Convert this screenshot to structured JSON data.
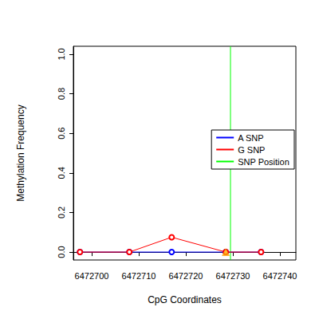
{
  "chart_data": {
    "type": "line",
    "x_label": "CpG Coordinates",
    "y_label": "Methylation Frequency",
    "x": [
      6472697.5,
      6472708,
      6472717,
      6472728.5,
      6472736
    ],
    "series": [
      {
        "name": "A SNP",
        "color": "#0000ff",
        "marker": "open_circle",
        "values": [
          0,
          0,
          0,
          0,
          0
        ]
      },
      {
        "name": "G SNP",
        "color": "#ff0000",
        "marker": "open_circle",
        "values": [
          0,
          0,
          0.075,
          0,
          0
        ]
      },
      {
        "name": "SNP Position",
        "color": "#00ff00",
        "type": "vline",
        "x": [
          6472729.5
        ]
      },
      {
        "color": "#ffa500",
        "type": "scatter",
        "marker": "triangle",
        "x": [
          6472728.5
        ],
        "values": [
          0
        ]
      }
    ],
    "xlim": [
      6472696.1,
      6472743.4
    ],
    "xticks": [
      6472700,
      6472710,
      6472720,
      6472730,
      6472740
    ],
    "ylim": [
      -0.04,
      1.04
    ],
    "yticks": [
      {
        "value": 0,
        "label": "0.0"
      },
      {
        "value": 0.2,
        "label": "0.2"
      },
      {
        "value": 0.4,
        "label": "0.4"
      },
      {
        "value": 0.6,
        "label": "0.6"
      },
      {
        "value": 0.8,
        "label": "0.8"
      },
      {
        "value": 1,
        "label": "1.0"
      }
    ],
    "legend": "right",
    "grid": false
  }
}
